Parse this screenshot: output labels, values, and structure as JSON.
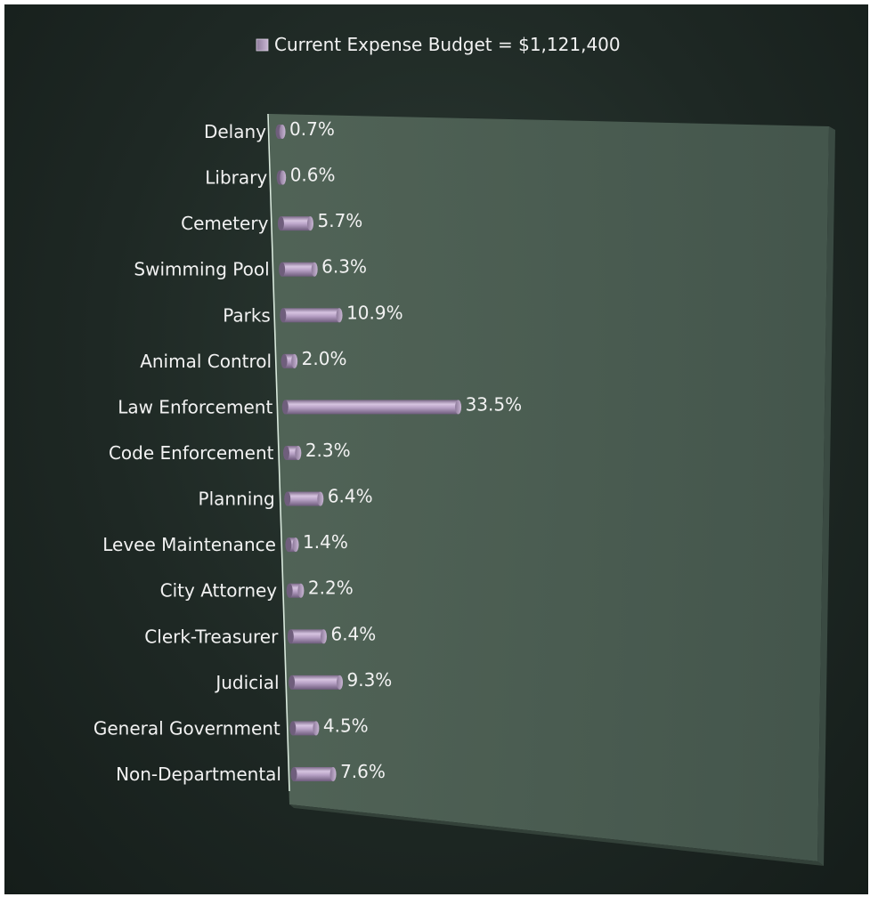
{
  "chart_data": {
    "type": "bar",
    "orientation": "horizontal",
    "style": "3d-cylinder",
    "categories": [
      "Delany",
      "Library",
      "Cemetery",
      "Swimming Pool",
      "Parks",
      "Animal Control",
      "Law Enforcement",
      "Code Enforcement",
      "Planning",
      "Levee Maintenance",
      "City Attorney",
      "Clerk-Treasurer",
      "Judicial",
      "General Government",
      "Non-Departmental"
    ],
    "series": [
      {
        "name": "Current Expense Budget = $1,121,400",
        "values": [
          0.7,
          0.6,
          5.7,
          6.3,
          10.9,
          2.0,
          33.5,
          2.3,
          6.4,
          1.4,
          2.2,
          6.4,
          9.3,
          4.5,
          7.6
        ]
      }
    ],
    "data_labels": [
      "0.7%",
      "0.6%",
      "5.7%",
      "6.3%",
      "10.9%",
      "2.0%",
      "33.5%",
      "2.3%",
      "6.4%",
      "1.4%",
      "2.2%",
      "6.4%",
      "9.3%",
      "4.5%",
      "7.6%"
    ],
    "value_unit": "%",
    "xlim": [
      0,
      100
    ],
    "legend_position": "top",
    "grid": false
  },
  "colors": {
    "background": "#1e2824",
    "wall": "#4c5f55",
    "bar": "#b8a2c6",
    "text": "#f2f2f2"
  }
}
